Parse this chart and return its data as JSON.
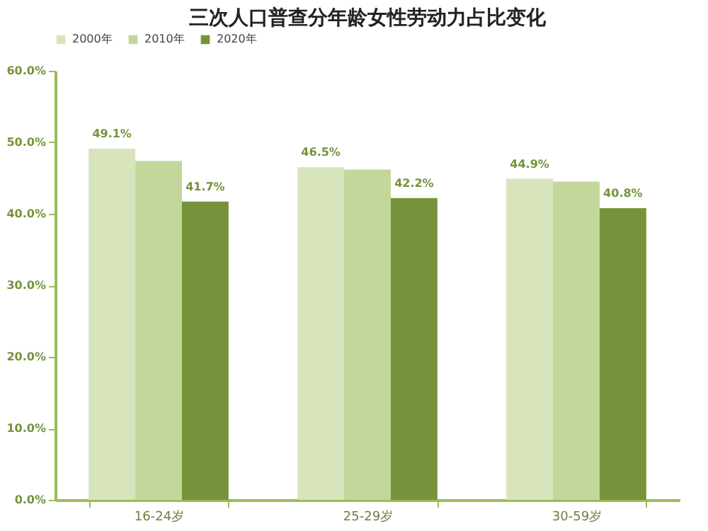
{
  "chart_data": {
    "type": "bar",
    "title": "三次人口普查分年龄女性劳动力占比变化",
    "categories": [
      "16-24岁",
      "25-29岁",
      "30-59岁"
    ],
    "series": [
      {
        "name": "2000年",
        "color": "#d8e4bc",
        "values": [
          49.1,
          46.5,
          44.9
        ],
        "value_labels": [
          "49.1%",
          "46.5%",
          "44.9%"
        ]
      },
      {
        "name": "2010年",
        "color": "#c4d79b",
        "values": [
          47.4,
          46.2,
          44.5
        ]
      },
      {
        "name": "2020年",
        "color": "#76933c",
        "values": [
          41.7,
          42.2,
          40.8
        ],
        "value_labels": [
          "41.7%",
          "42.2%",
          "40.8%"
        ]
      }
    ],
    "ylim": [
      0,
      60
    ],
    "yticks": [
      {
        "value": 0,
        "label": "0.0%"
      },
      {
        "value": 10,
        "label": "10.0%"
      },
      {
        "value": 20,
        "label": "20.0%"
      },
      {
        "value": 30,
        "label": "30.0%"
      },
      {
        "value": 40,
        "label": "40.0%"
      },
      {
        "value": 50,
        "label": "50.0%"
      },
      {
        "value": 60,
        "label": "60.0%"
      }
    ],
    "grid": false,
    "legend": "top"
  }
}
